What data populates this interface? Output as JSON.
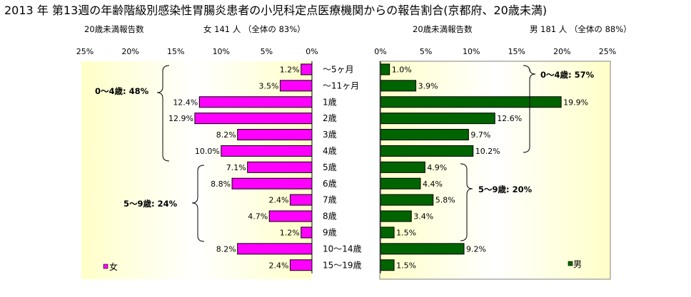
{
  "title": "2013 年 第13週の年齢階級別感染性胃腸炎患者の小児科定点医療機関からの報告割合(京都府、20歳未満)",
  "female": {
    "header_label": "20歳未満報告数",
    "header_summary": "女  141 人 （全体の   83%）",
    "legend": "女",
    "group_labels": [
      "0～4歳: 48%",
      "5～9歳: 24%"
    ]
  },
  "male": {
    "header_label": "20歳未満報告数",
    "header_summary": "男  181 人 （全体の   88%）",
    "legend": "男",
    "group_labels": [
      "0～4歳: 57%",
      "5～9歳: 20%"
    ]
  },
  "chart_data": [
    {
      "type": "bar",
      "orientation": "horizontal",
      "direction": "right-to-left",
      "series": [
        {
          "name": "女",
          "values": [
            1.2,
            3.5,
            12.4,
            12.9,
            8.2,
            10.0,
            7.1,
            8.8,
            2.4,
            4.7,
            1.2,
            8.2,
            2.4
          ]
        }
      ],
      "value_labels": [
        "1.2%",
        "3.5%",
        "12.4%",
        "12.9%",
        "8.2%",
        "10.0%",
        "7.1%",
        "8.8%",
        "2.4%",
        "4.7%",
        "1.2%",
        "8.2%",
        "2.4%"
      ],
      "categories": [
        "～5ヶ月",
        "～11ヶ月",
        "1歳",
        "2歳",
        "3歳",
        "4歳",
        "5歳",
        "6歳",
        "7歳",
        "8歳",
        "9歳",
        "10～14歳",
        "15～19歳"
      ],
      "xlim": [
        0,
        25
      ],
      "ticks": [
        "0%",
        "5%",
        "10%",
        "15%",
        "20%",
        "25%"
      ],
      "legend_position": "bottom-left",
      "colors": {
        "bar": "#ff00ff",
        "bar_border": "#000000"
      }
    },
    {
      "type": "bar",
      "orientation": "horizontal",
      "direction": "left-to-right",
      "series": [
        {
          "name": "男",
          "values": [
            1.0,
            3.9,
            19.9,
            12.6,
            9.7,
            10.2,
            4.9,
            4.4,
            5.8,
            3.4,
            1.5,
            9.2,
            1.5
          ]
        }
      ],
      "value_labels": [
        "1.0%",
        "3.9%",
        "19.9%",
        "12.6%",
        "9.7%",
        "10.2%",
        "4.9%",
        "4.4%",
        "5.8%",
        "3.4%",
        "1.5%",
        "9.2%",
        "1.5%"
      ],
      "categories": [
        "～5ヶ月",
        "～11ヶ月",
        "1歳",
        "2歳",
        "3歳",
        "4歳",
        "5歳",
        "6歳",
        "7歳",
        "8歳",
        "9歳",
        "10～14歳",
        "15～19歳"
      ],
      "xlim": [
        0,
        25
      ],
      "ticks": [
        "0%",
        "5%",
        "10%",
        "15%",
        "20%",
        "25%"
      ],
      "legend_position": "bottom-left",
      "colors": {
        "bar": "#006400",
        "bar_border": "#000000"
      }
    }
  ],
  "colors": {
    "plot_bg_edge": "#ffffc8",
    "plot_bg_center": "#ffffff"
  }
}
